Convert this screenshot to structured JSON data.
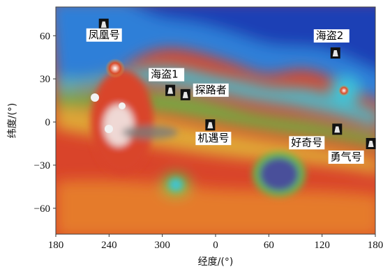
{
  "colors": {
    "deep_blue": "#1f3fb5",
    "mid_blue": "#2f7fd8",
    "cyan": "#3fc4d8",
    "green": "#5ec24a",
    "yellow": "#e3d23a",
    "orange": "#e88a2c",
    "red": "#d9442a",
    "white_peak": "#f2f2f2",
    "basin_purple": "#4a4f9a"
  },
  "map": {
    "x_axis": {
      "title": "经度/(°)",
      "ticks": [
        {
          "label": "180",
          "lon_pos": 180
        },
        {
          "label": "240",
          "lon_pos": 240
        },
        {
          "label": "300",
          "lon_pos": 300
        },
        {
          "label": "0",
          "lon_pos": 360
        },
        {
          "label": "60",
          "lon_pos": 420
        },
        {
          "label": "120",
          "lon_pos": 480
        },
        {
          "label": "180",
          "lon_pos": 540
        }
      ]
    },
    "y_axis": {
      "title": "纬度/(°)",
      "ticks": [
        {
          "label": "60",
          "lat": 60
        },
        {
          "label": "30",
          "lat": 30
        },
        {
          "label": "0",
          "lat": 0
        },
        {
          "label": "−30",
          "lat": -30
        },
        {
          "label": "−60",
          "lat": -60
        }
      ]
    },
    "landers": [
      {
        "name": "凤凰号",
        "lon_pos": 234,
        "lat": 68
      },
      {
        "name": "海盗1",
        "lon_pos": 309,
        "lat": 22
      },
      {
        "name": "探路者",
        "lon_pos": 326,
        "lat": 19
      },
      {
        "name": "机遇号",
        "lon_pos": 354,
        "lat": -2
      },
      {
        "name": "海盗2",
        "lon_pos": 495,
        "lat": 48
      },
      {
        "name": "好奇号",
        "lon_pos": 497,
        "lat": -5
      },
      {
        "name": "勇气号",
        "lon_pos": 535,
        "lat": -15
      }
    ]
  }
}
